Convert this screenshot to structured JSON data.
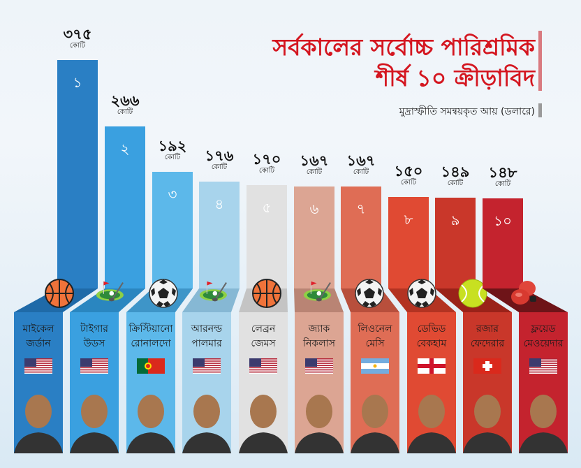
{
  "header": {
    "title_line1": "সর্বকালের সর্বোচ্চ পারিশ্রমিক",
    "title_line2": "শীর্ষ ১০ ক্রীড়াবিদ",
    "subtitle": "মুদ্রাস্ফীতি সমন্বয়কৃত আয় (ডলারে)"
  },
  "unit_label": "কোটি",
  "athletes": [
    {
      "rank": "১",
      "value": "৩৭৫",
      "name1": "মাইকেল",
      "name2": "জর্ডান",
      "sport": "basketball",
      "country": "USA",
      "color": "#2a7fc4",
      "fold": "#1f6aa8"
    },
    {
      "rank": "২",
      "value": "২৬৬",
      "name1": "টাইগার",
      "name2": "উডস",
      "sport": "golf",
      "country": "USA",
      "color": "#3aa0e0",
      "fold": "#2a86c0"
    },
    {
      "rank": "৩",
      "value": "১৯২",
      "name1": "ক্রিস্টিয়ানো",
      "name2": "রোনালদো",
      "sport": "football",
      "country": "Portugal",
      "color": "#5cb8ea",
      "fold": "#3e95c8"
    },
    {
      "rank": "৪",
      "value": "১৭৬",
      "name1": "আরনল্ড",
      "name2": "পালমার",
      "sport": "golf",
      "country": "USA",
      "color": "#a8d4ec",
      "fold": "#86b8d4"
    },
    {
      "rank": "৫",
      "value": "১৭০",
      "name1": "লেব্রন",
      "name2": "জেমস",
      "sport": "basketball",
      "country": "USA",
      "color": "#e1e1e1",
      "fold": "#c4c4c4"
    },
    {
      "rank": "৬",
      "value": "১৬৭",
      "name1": "জ্যাক",
      "name2": "নিকলাস",
      "sport": "golf",
      "country": "USA",
      "color": "#dca593",
      "fold": "#b98474"
    },
    {
      "rank": "৭",
      "value": "১৬৭",
      "name1": "লিওনেল",
      "name2": "মেসি",
      "sport": "football",
      "country": "Argentina",
      "color": "#df6d55",
      "fold": "#b84f3c"
    },
    {
      "rank": "৮",
      "value": "১৫০",
      "name1": "ডেভিড",
      "name2": "বেকহাম",
      "sport": "football",
      "country": "England",
      "color": "#e04a33",
      "fold": "#b33322"
    },
    {
      "rank": "৯",
      "value": "১৪৯",
      "name1": "রজার",
      "name2": "ফেদেরার",
      "sport": "tennis",
      "country": "Switzerland",
      "color": "#c9372a",
      "fold": "#9a2219"
    },
    {
      "rank": "১০",
      "value": "১৪৮",
      "name1": "ফ্লয়েড",
      "name2": "মেওয়েদার",
      "sport": "boxing",
      "country": "USA",
      "color": "#c4232e",
      "fold": "#6e1418"
    }
  ],
  "chart_data": {
    "type": "bar",
    "title": "সর্বকালের সর্বোচ্চ পারিশ্রমিক শীর্ষ ১০ ক্রীড়াবিদ",
    "subtitle": "মুদ্রাস্ফীতি সমন্বয়কৃত আয় (ডলারে)",
    "categories": [
      "Michael Jordan",
      "Tiger Woods",
      "Cristiano Ronaldo",
      "Arnold Palmer",
      "LeBron James",
      "Jack Nicklaus",
      "Lionel Messi",
      "David Beckham",
      "Roger Federer",
      "Floyd Mayweather"
    ],
    "values": [
      375,
      266,
      192,
      176,
      170,
      167,
      167,
      150,
      149,
      148
    ],
    "unit": "কোটি (crore USD)",
    "xlabel": "",
    "ylabel": "",
    "grid": false,
    "legend": "none"
  }
}
